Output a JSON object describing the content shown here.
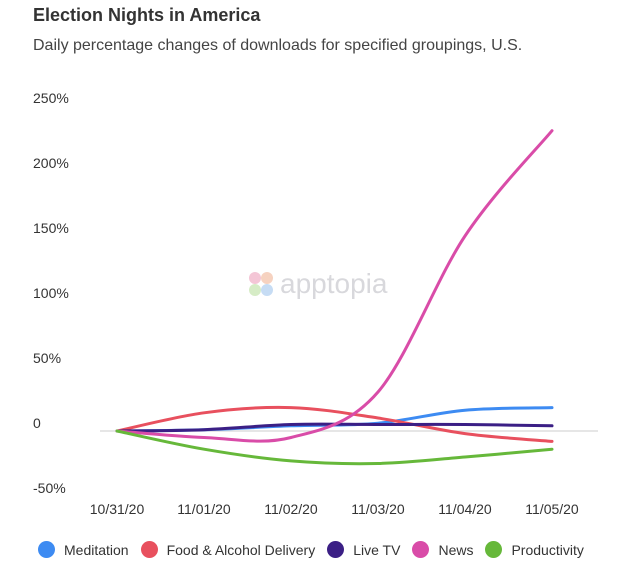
{
  "chart_data": {
    "type": "line",
    "title": "Election Nights in America",
    "subtitle": "Daily percentage changes of downloads for specified groupings, U.S.",
    "watermark": "apptopia",
    "x": [
      "10/31/20",
      "11/01/20",
      "11/02/20",
      "11/03/20",
      "11/04/20",
      "11/05/20"
    ],
    "ylim": [
      -50,
      250
    ],
    "yticks": [
      250,
      200,
      150,
      100,
      50,
      0,
      -50
    ],
    "ytick_labels": [
      "250%",
      "200%",
      "150%",
      "100%",
      "50%",
      "0",
      "-50%"
    ],
    "legend_position": "bottom",
    "series": [
      {
        "name": "Meditation",
        "color": "#3d8bf2",
        "values": [
          0,
          1,
          4,
          6,
          16,
          18
        ]
      },
      {
        "name": "Food & Alcohol Delivery",
        "color": "#e8505e",
        "values": [
          0,
          14,
          18,
          10,
          -2,
          -8
        ]
      },
      {
        "name": "Live TV",
        "color": "#3b1f85",
        "values": [
          0,
          1,
          5,
          5,
          5,
          4
        ]
      },
      {
        "name": "News",
        "color": "#d94ca8",
        "values": [
          0,
          -5,
          -5,
          30,
          150,
          231
        ]
      },
      {
        "name": "Productivity",
        "color": "#66b83a",
        "values": [
          0,
          -14,
          -23,
          -25,
          -20,
          -14
        ]
      }
    ]
  }
}
